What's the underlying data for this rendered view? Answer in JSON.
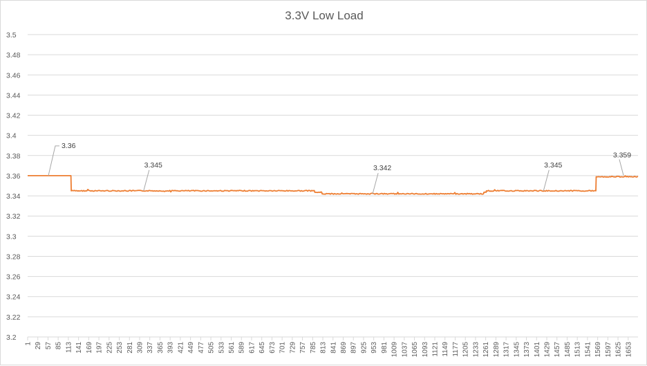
{
  "chart_data": {
    "type": "line",
    "title": "3.3V Low Load",
    "xlabel": "",
    "ylabel": "",
    "ylim": [
      3.2,
      3.5
    ],
    "xlim": [
      1,
      1680
    ],
    "grid": "horizontal",
    "legend": "none",
    "series_color": "#ED7D31",
    "grid_color": "#D9D9D9",
    "text_color": "#595959",
    "y_ticks": [
      "3.2",
      "3.22",
      "3.24",
      "3.26",
      "3.28",
      "3.3",
      "3.32",
      "3.34",
      "3.36",
      "3.38",
      "3.4",
      "3.42",
      "3.44",
      "3.46",
      "3.48",
      "3.5"
    ],
    "x_ticks": [
      "1",
      "29",
      "57",
      "85",
      "113",
      "141",
      "169",
      "197",
      "225",
      "253",
      "281",
      "309",
      "337",
      "365",
      "393",
      "421",
      "449",
      "477",
      "505",
      "533",
      "561",
      "589",
      "617",
      "645",
      "673",
      "701",
      "729",
      "757",
      "785",
      "813",
      "841",
      "869",
      "897",
      "925",
      "953",
      "981",
      "1009",
      "1037",
      "1065",
      "1093",
      "1121",
      "1149",
      "1177",
      "1205",
      "1233",
      "1261",
      "1289",
      "1317",
      "1345",
      "1373",
      "1401",
      "1429",
      "1457",
      "1485",
      "1513",
      "1541",
      "1569",
      "1597",
      "1625",
      "1653"
    ],
    "series": [
      {
        "segments": [
          {
            "x_start": 1,
            "x_end": 120,
            "y": 3.36
          },
          {
            "x_start": 121,
            "x_end": 790,
            "y": 3.345
          },
          {
            "x_start": 791,
            "x_end": 810,
            "y": 3.3435
          },
          {
            "x_start": 811,
            "x_end": 1255,
            "y": 3.342
          },
          {
            "x_start": 1256,
            "x_end": 1262,
            "y": 3.3435
          },
          {
            "x_start": 1263,
            "x_end": 1564,
            "y": 3.345
          },
          {
            "x_start": 1565,
            "x_end": 1680,
            "y": 3.359
          }
        ]
      }
    ],
    "annotations": [
      {
        "label": "3.36",
        "x": 58,
        "y": 3.36
      },
      {
        "label": "3.345",
        "x": 320,
        "y": 3.345
      },
      {
        "label": "3.342",
        "x": 950,
        "y": 3.342
      },
      {
        "label": "3.345",
        "x": 1420,
        "y": 3.345
      },
      {
        "label": "3.359",
        "x": 1640,
        "y": 3.359
      }
    ]
  }
}
